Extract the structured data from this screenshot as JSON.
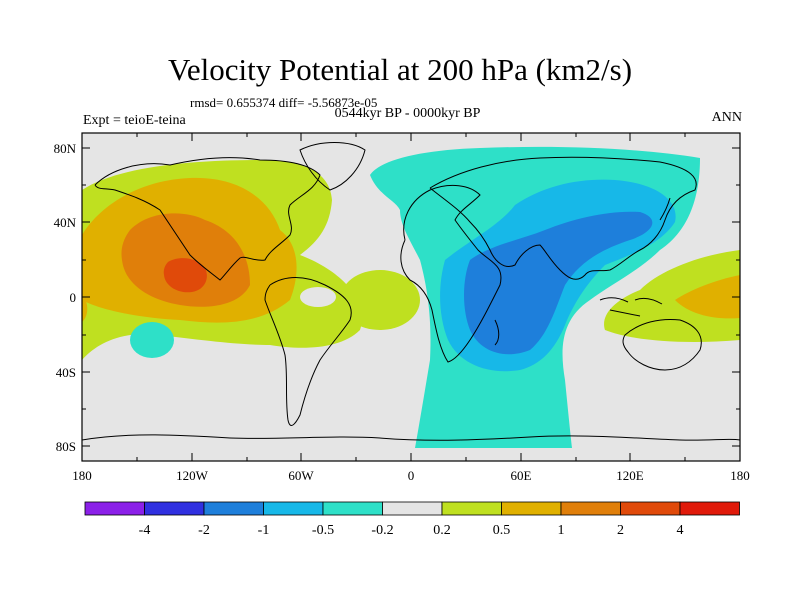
{
  "title": "Velocity Potential at 200 hPa (km2/s)",
  "stats": "rmsd= 0.655374 diff= -5.56873e-05",
  "period": "0544kyr BP - 0000kyr BP",
  "experiment": "Expt = teioE-teina",
  "season": "ANN",
  "map": {
    "lat_ticks": [
      "80N",
      "40N",
      "0",
      "40S",
      "80S"
    ],
    "lon_ticks": [
      "180",
      "120W",
      "60W",
      "0",
      "60E",
      "120E",
      "180"
    ],
    "lat_values": [
      80,
      40,
      0,
      -40,
      -80
    ],
    "lon_values": [
      -180,
      -120,
      -60,
      0,
      60,
      120,
      180
    ],
    "ocean_color": "#e5e5e5"
  },
  "colorbar": {
    "colors": [
      "#8b20e8",
      "#3030e0",
      "#1e7fdb",
      "#17b8e8",
      "#2ee0c8",
      "#e5e5e5",
      "#bfe020",
      "#e0b000",
      "#e07f0a",
      "#e04a0a",
      "#e01a0a"
    ],
    "labels": [
      "-4",
      "-2",
      "-1",
      "-0.5",
      "-0.2",
      "0.2",
      "0.5",
      "1",
      "2",
      "4"
    ]
  }
}
